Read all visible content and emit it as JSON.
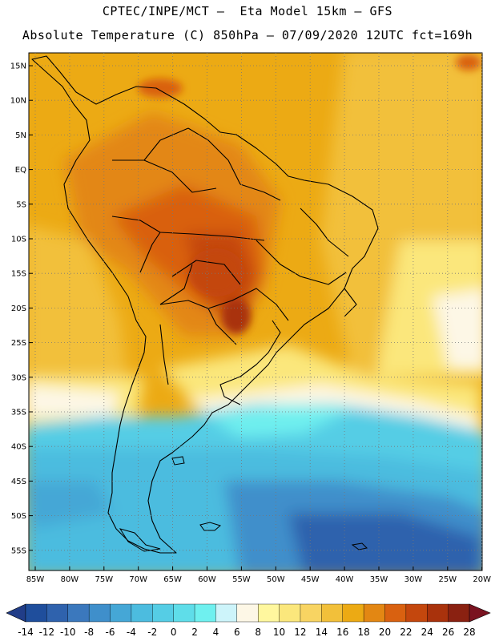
{
  "header": {
    "line1": "CPTEC/INPE/MCT –  Eta Model 15km – GFS",
    "line2": "Absolute Temperature (C) 850hPa – 07/09/2020 12UTC fct=169h"
  },
  "map": {
    "variable": "Absolute Temperature (C) 850hPa",
    "lat_labels": [
      "15N",
      "10N",
      "5N",
      "EQ",
      "5S",
      "10S",
      "15S",
      "20S",
      "25S",
      "30S",
      "35S",
      "40S",
      "45S",
      "50S",
      "55S"
    ],
    "lon_labels": [
      "85W",
      "80W",
      "75W",
      "70W",
      "65W",
      "60W",
      "55W",
      "50W",
      "45W",
      "40W",
      "35W",
      "30W",
      "25W",
      "20W"
    ]
  },
  "colorbar": {
    "labels": [
      "-14",
      "-12",
      "-10",
      "-8",
      "-6",
      "-4",
      "-2",
      "0",
      "2",
      "4",
      "6",
      "8",
      "10",
      "12",
      "14",
      "16",
      "18",
      "20",
      "22",
      "24",
      "26",
      "28"
    ],
    "colors": [
      "#1f4e9c",
      "#2f62ad",
      "#3b78bd",
      "#3f8fcb",
      "#45a7d6",
      "#4cbcdf",
      "#55cde5",
      "#5fdde9",
      "#6ff0ef",
      "#cdf4fa",
      "#fdf7e6",
      "#fff79e",
      "#fbe77c",
      "#f8d462",
      "#f2c03a",
      "#ecaa14",
      "#e38713",
      "#d96110",
      "#c4470d",
      "#a9320c",
      "#8a2111"
    ],
    "under_color": "#213d88",
    "over_color": "#7a1320"
  }
}
